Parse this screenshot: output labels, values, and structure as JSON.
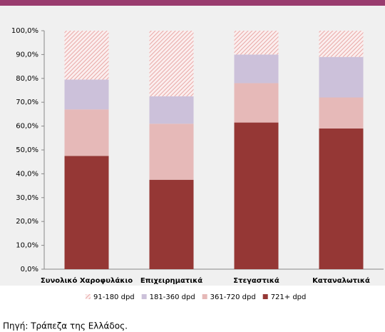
{
  "chart_data": {
    "type": "stacked_bar",
    "categories": [
      "Συνολικό Χαροφυλάκιο",
      "Επιχειρηματικά",
      "Στεγαστικά",
      "Καταναλωτικά"
    ],
    "series": [
      {
        "name": "721+ dpd",
        "color": "#953735",
        "values": [
          47.5,
          37.5,
          61.5,
          59
        ]
      },
      {
        "name": "361-720 dpd",
        "color": "#e6b9b8",
        "values": [
          19.5,
          23.5,
          16.5,
          13
        ]
      },
      {
        "name": "181-360 dpd",
        "color": "#ccc1da",
        "values": [
          12.5,
          11.5,
          12,
          17
        ]
      },
      {
        "name": "91-180 dpd",
        "color": "#f2c6c4",
        "values": [
          20.5,
          27.5,
          10,
          11
        ]
      }
    ],
    "ylim": [
      0,
      100
    ],
    "yticks": [
      {
        "value": 0,
        "label": "0,0%"
      },
      {
        "value": 10,
        "label": "10,0%"
      },
      {
        "value": 20,
        "label": "20,0%"
      },
      {
        "value": 30,
        "label": "30,0%"
      },
      {
        "value": 40,
        "label": "40,0%"
      },
      {
        "value": 50,
        "label": "50,0%"
      },
      {
        "value": 60,
        "label": "60,0%"
      },
      {
        "value": 70,
        "label": "70,0%"
      },
      {
        "value": 80,
        "label": "80,0%"
      },
      {
        "value": 90,
        "label": "90,0%"
      },
      {
        "value": 100,
        "label": "100,0%"
      }
    ],
    "grid": false,
    "legend": "bottom"
  },
  "source": "Πηγή: Τράπεζα της Ελλάδος."
}
